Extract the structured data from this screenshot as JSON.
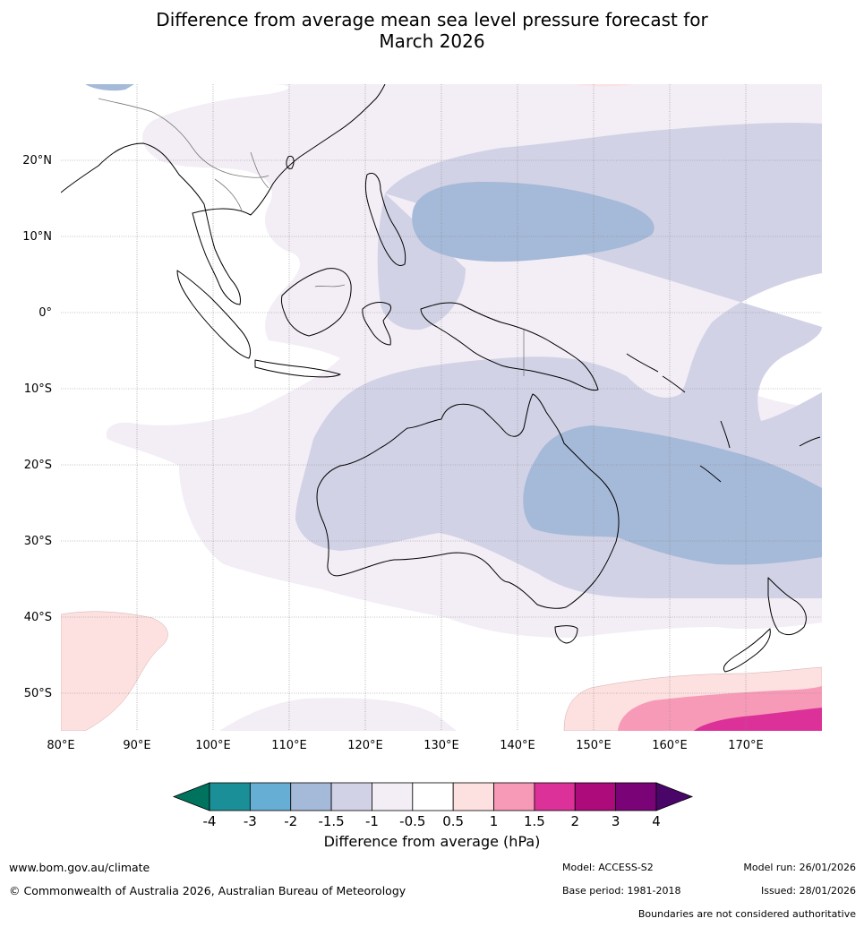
{
  "title": {
    "line1": "Difference from average mean sea level pressure forecast for",
    "line2": "March 2026"
  },
  "map": {
    "lat_labels": [
      "20°N",
      "10°N",
      "0°",
      "10°S",
      "20°S",
      "30°S",
      "40°S",
      "50°S"
    ],
    "lon_labels": [
      "80°E",
      "90°E",
      "100°E",
      "110°E",
      "120°E",
      "130°E",
      "140°E",
      "150°E",
      "160°E",
      "170°E"
    ]
  },
  "legend": {
    "ticks": [
      "-4",
      "-3",
      "-2",
      "-1.5",
      "-1",
      "-0.5",
      "0.5",
      "1",
      "1.5",
      "2",
      "3",
      "4"
    ],
    "colors": [
      "#1b8f97",
      "#67aed4",
      "#a5b9d8",
      "#d2d2e6",
      "#f3edf5",
      "#ffffff",
      "#fde0e0",
      "#f79ab8",
      "#dc3198",
      "#ad0a7b",
      "#7a0477"
    ],
    "under_color": "#00735e",
    "over_color": "#4a0569",
    "label": "Difference from average (hPa)"
  },
  "footer": {
    "website": "www.bom.gov.au/climate",
    "copyright": "© Commonwealth of Australia 2026, Australian Bureau of Meteorology",
    "model": "Model: ACCESS-S2",
    "model_run": "Model run: 26/01/2026",
    "base_period": "Base period: 1981-2018",
    "issued": "Issued: 28/01/2026",
    "disclaimer": "Boundaries are not considered authoritative"
  }
}
